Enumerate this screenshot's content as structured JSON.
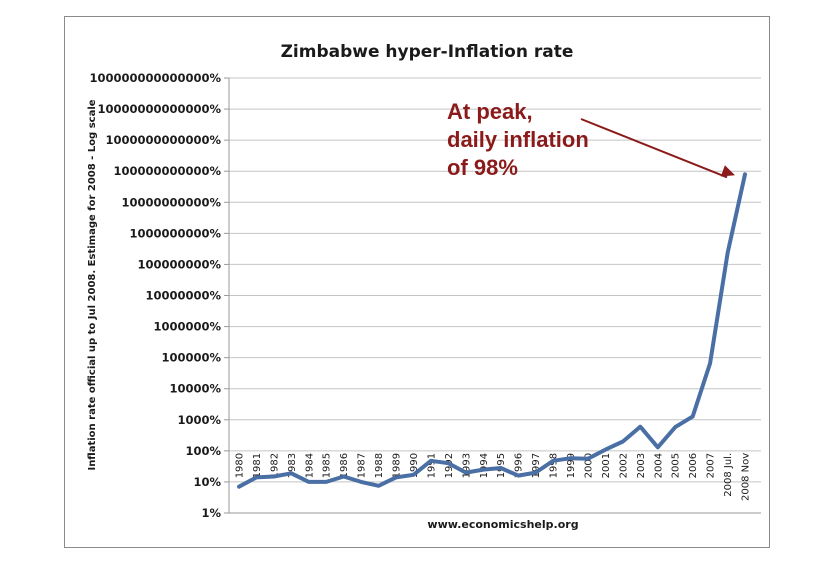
{
  "chart_data": {
    "type": "line",
    "title": "Zimbabwe hyper-Inflation rate",
    "xlabel": "www.economicshelp.org",
    "ylabel": "Inflation rate official up to Jul 2008. Estimage for 2008 - Log scale",
    "y_scale": "log",
    "ylim": [
      1,
      100000000000000
    ],
    "y_ticks": [
      1,
      10,
      100,
      1000,
      10000,
      100000,
      1000000,
      10000000,
      100000000,
      1000000000,
      10000000000,
      100000000000,
      1000000000000,
      10000000000000,
      100000000000000
    ],
    "y_tick_labels": [
      "1%",
      "10%",
      "100%",
      "1000%",
      "10000%",
      "100000%",
      "1000000%",
      "10000000%",
      "100000000%",
      "1000000000%",
      "10000000000%",
      "100000000000%",
      "1000000000000%",
      "10000000000000%",
      "100000000000000%"
    ],
    "grid": true,
    "categories": [
      "1980",
      "1981",
      "1982",
      "1983",
      "1984",
      "1985",
      "1986",
      "1987",
      "1988",
      "1989",
      "1990",
      "1991",
      "1992",
      "1993",
      "1994",
      "1995",
      "1996",
      "1997",
      "1998",
      "1999",
      "2000",
      "2001",
      "2002",
      "2003",
      "2004",
      "2005",
      "2006",
      "2007",
      "2008 Jul.",
      "2008 Nov"
    ],
    "series": [
      {
        "name": "Inflation rate",
        "color": "#4a6fa5",
        "values": [
          7,
          14,
          15,
          19,
          10,
          10,
          15,
          10,
          7.5,
          14,
          17,
          48,
          40,
          20,
          25,
          28,
          16,
          20,
          48,
          58,
          56,
          110,
          200,
          600,
          130,
          580,
          1280,
          66000,
          231000000,
          79600000000
        ]
      }
    ],
    "annotation": {
      "lines": [
        "At peak,",
        "daily inflation",
        "of 98%"
      ],
      "color": "#8b1a1a",
      "points_to": "2008 Nov"
    }
  }
}
